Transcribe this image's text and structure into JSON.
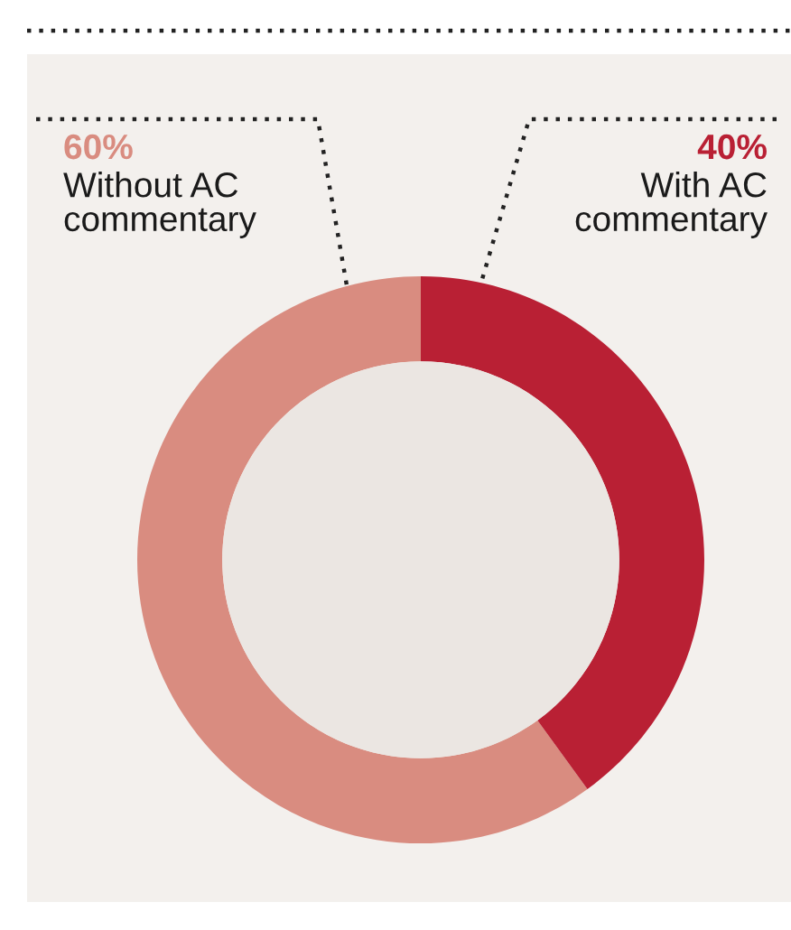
{
  "chart_data": {
    "type": "donut",
    "categories": [
      "Without AC\ncommentary",
      "With AC\ncommentary"
    ],
    "values": [
      60,
      40
    ],
    "colors": [
      "#d98c80",
      "#b92034"
    ],
    "value_labels": [
      "60%",
      "40%"
    ],
    "legend": false
  }
}
